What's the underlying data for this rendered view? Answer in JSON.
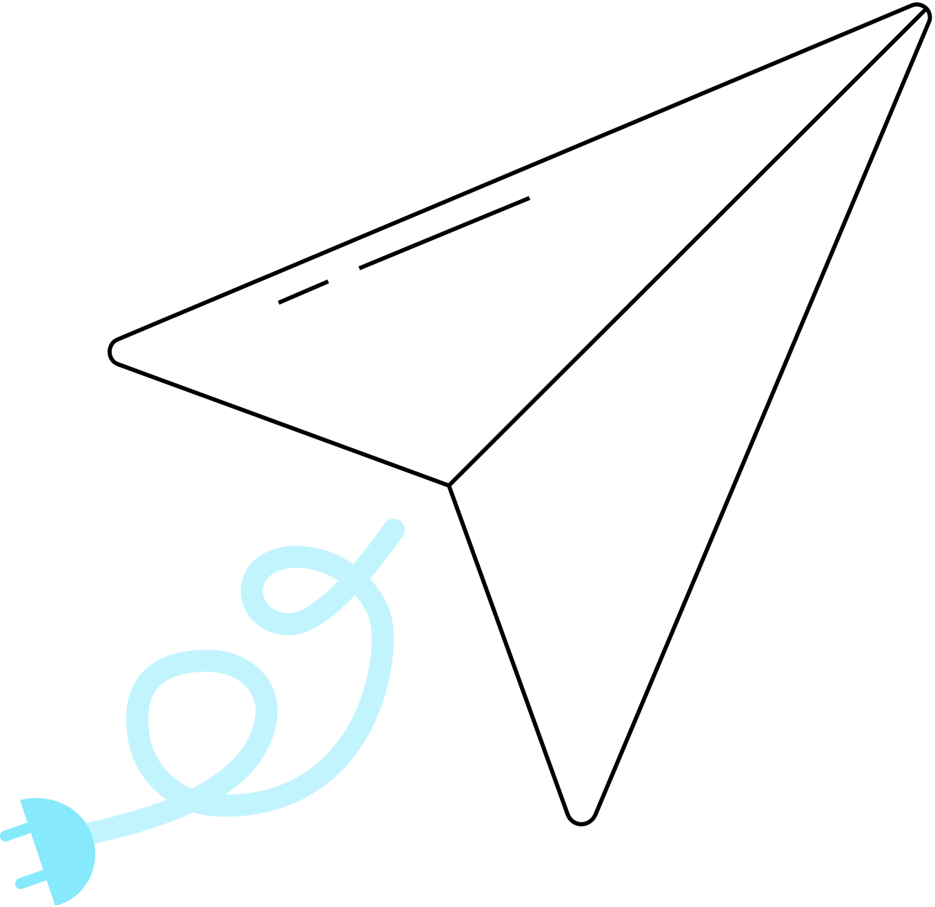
{
  "illustration": {
    "subject": "paper-plane-with-unplugged-cord",
    "colors": {
      "background": "#ffffff",
      "outline": "#000000",
      "cord": "#c2f4fe",
      "plug": "#86e9fc"
    },
    "icons": [
      "paper-plane-icon",
      "power-plug-icon"
    ]
  }
}
